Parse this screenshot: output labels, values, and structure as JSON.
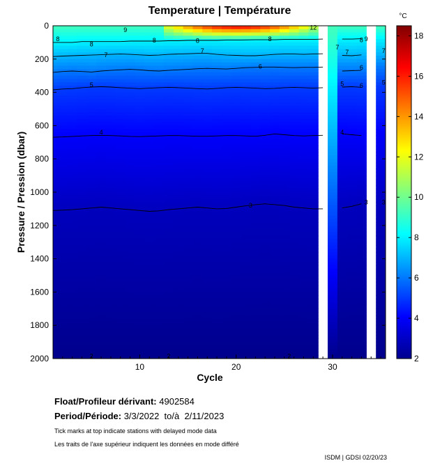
{
  "chart_data": {
    "type": "heatmap",
    "title": "Temperature | Température",
    "xlabel": "Cycle",
    "ylabel": "Pressure / Pression (dbar)",
    "colorbar_unit": "°C",
    "x_range": [
      1,
      35.5
    ],
    "y_range": [
      0,
      2000
    ],
    "y_inverted": true,
    "x_ticks": [
      10,
      20,
      30
    ],
    "y_ticks": [
      0,
      200,
      400,
      600,
      800,
      1000,
      1200,
      1400,
      1600,
      1800,
      2000
    ],
    "colorbar_range": [
      2,
      18.5
    ],
    "colorbar_ticks": [
      2,
      4,
      6,
      8,
      10,
      12,
      14,
      16,
      18
    ],
    "missing_cycles": [
      29,
      34
    ],
    "contours": [
      {
        "level": 8,
        "pressure": [
          100,
          100,
          100,
          95,
          95,
          95,
          95,
          95,
          92,
          92,
          92,
          92,
          90,
          90,
          88,
          88,
          88,
          88,
          86,
          86,
          85,
          84,
          84,
          84,
          82,
          82,
          82,
          82,
          80,
          null,
          80,
          80,
          78,
          null,
          78
        ]
      },
      {
        "level": 7,
        "pressure": [
          185,
          182,
          180,
          178,
          176,
          174,
          172,
          170,
          172,
          175,
          178,
          176,
          172,
          170,
          168,
          166,
          166,
          172,
          176,
          178,
          180,
          180,
          176,
          172,
          170,
          170,
          172,
          170,
          168,
          null,
          178,
          180,
          175,
          null,
          170
        ]
      },
      {
        "level": 6,
        "pressure": [
          280,
          275,
          272,
          275,
          278,
          272,
          268,
          265,
          262,
          265,
          270,
          272,
          268,
          265,
          262,
          258,
          256,
          258,
          260,
          256,
          252,
          250,
          248,
          248,
          250,
          252,
          250,
          250,
          248,
          null,
          272,
          270,
          268,
          null,
          250
        ]
      },
      {
        "level": 5,
        "pressure": [
          385,
          380,
          378,
          372,
          368,
          366,
          368,
          372,
          375,
          378,
          375,
          372,
          370,
          372,
          375,
          378,
          380,
          376,
          372,
          370,
          372,
          375,
          378,
          376,
          372,
          370,
          372,
          375,
          372,
          null,
          368,
          366,
          370,
          null,
          362
        ]
      },
      {
        "level": 4,
        "pressure": [
          670,
          668,
          665,
          662,
          660,
          658,
          660,
          662,
          665,
          666,
          664,
          662,
          660,
          660,
          662,
          664,
          664,
          662,
          660,
          660,
          662,
          664,
          658,
          650,
          655,
          660,
          662,
          660,
          658,
          null,
          650,
          655,
          660,
          null,
          650
        ]
      },
      {
        "level": 3,
        "pressure": [
          1110,
          1108,
          1105,
          1100,
          1095,
          1090,
          1095,
          1100,
          1105,
          1110,
          1115,
          1112,
          1105,
          1100,
          1095,
          1090,
          1095,
          1100,
          1098,
          1090,
          1082,
          1075,
          1070,
          1075,
          1080,
          1090,
          1095,
          1100,
          1100,
          null,
          1095,
          1085,
          1070,
          null,
          1080
        ]
      }
    ],
    "contour_labels": [
      {
        "text": "8",
        "cycle": 1.5,
        "pressure": 80
      },
      {
        "text": "8",
        "cycle": 5,
        "pressure": 110
      },
      {
        "text": "9",
        "cycle": 8.5,
        "pressure": 25
      },
      {
        "text": "8",
        "cycle": 11.5,
        "pressure": 88
      },
      {
        "text": "8",
        "cycle": 16,
        "pressure": 90
      },
      {
        "text": "8",
        "cycle": 23.5,
        "pressure": 80
      },
      {
        "text": "12",
        "cycle": 28,
        "pressure": 10
      },
      {
        "text": "8",
        "cycle": 33,
        "pressure": 86
      },
      {
        "text": "9",
        "cycle": 33.5,
        "pressure": 80
      },
      {
        "text": "7",
        "cycle": 6.5,
        "pressure": 175
      },
      {
        "text": "7",
        "cycle": 16.5,
        "pressure": 150
      },
      {
        "text": "7",
        "cycle": 30.5,
        "pressure": 130
      },
      {
        "text": "7",
        "cycle": 31.5,
        "pressure": 160
      },
      {
        "text": "7",
        "cycle": 35.3,
        "pressure": 150
      },
      {
        "text": "6",
        "cycle": 22.5,
        "pressure": 245
      },
      {
        "text": "6",
        "cycle": 33,
        "pressure": 250
      },
      {
        "text": "6",
        "cycle": 33,
        "pressure": 360
      },
      {
        "text": "5",
        "cycle": 5,
        "pressure": 355
      },
      {
        "text": "5",
        "cycle": 31,
        "pressure": 350
      },
      {
        "text": "5",
        "cycle": 35.3,
        "pressure": 340
      },
      {
        "text": "4",
        "cycle": 6,
        "pressure": 640
      },
      {
        "text": "4",
        "cycle": 31,
        "pressure": 640
      },
      {
        "text": "3",
        "cycle": 21.5,
        "pressure": 1080
      },
      {
        "text": "3",
        "cycle": 33.5,
        "pressure": 1060
      },
      {
        "text": "3",
        "cycle": 35.3,
        "pressure": 1060
      },
      {
        "text": "2",
        "cycle": 5,
        "pressure": 1985
      },
      {
        "text": "2",
        "cycle": 13,
        "pressure": 1985
      },
      {
        "text": "2",
        "cycle": 25.5,
        "pressure": 1985
      }
    ]
  },
  "info": {
    "float_label": "Float/Profileur dérivant:",
    "float_value": "4902584",
    "period_label": "Period/Période:",
    "period_value": "3/3/2022  to/à  2/11/2023",
    "note_en": "Tick marks at top indicate stations with delayed mode data",
    "note_fr": "Les traits de l'axe supérieur indiquent les données en mode différé",
    "credit": "ISDM | GDSI  02/20/23"
  }
}
